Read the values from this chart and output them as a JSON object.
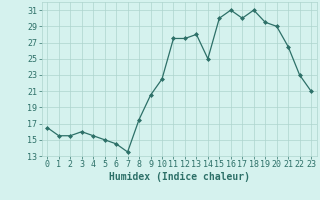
{
  "xlabel": "Humidex (Indice chaleur)",
  "x": [
    0,
    1,
    2,
    3,
    4,
    5,
    6,
    7,
    8,
    9,
    10,
    11,
    12,
    13,
    14,
    15,
    16,
    17,
    18,
    19,
    20,
    21,
    22,
    23
  ],
  "y": [
    16.5,
    15.5,
    15.5,
    16.0,
    15.5,
    15.0,
    14.5,
    13.5,
    17.5,
    20.5,
    22.5,
    27.5,
    27.5,
    28.0,
    25.0,
    30.0,
    31.0,
    30.0,
    31.0,
    29.5,
    29.0,
    26.5,
    23.0,
    21.0
  ],
  "line_color": "#2d7068",
  "marker": "D",
  "markersize": 2.0,
  "linewidth": 0.9,
  "bg_color": "#d5f2ee",
  "grid_color": "#aed4ce",
  "ylim": [
    13,
    32
  ],
  "xlim": [
    -0.5,
    23.5
  ],
  "yticks": [
    13,
    15,
    17,
    19,
    21,
    23,
    25,
    27,
    29,
    31
  ],
  "xticks": [
    0,
    1,
    2,
    3,
    4,
    5,
    6,
    7,
    8,
    9,
    10,
    11,
    12,
    13,
    14,
    15,
    16,
    17,
    18,
    19,
    20,
    21,
    22,
    23
  ],
  "xlabel_fontsize": 7,
  "tick_fontsize": 6,
  "tick_color": "#2d7068"
}
